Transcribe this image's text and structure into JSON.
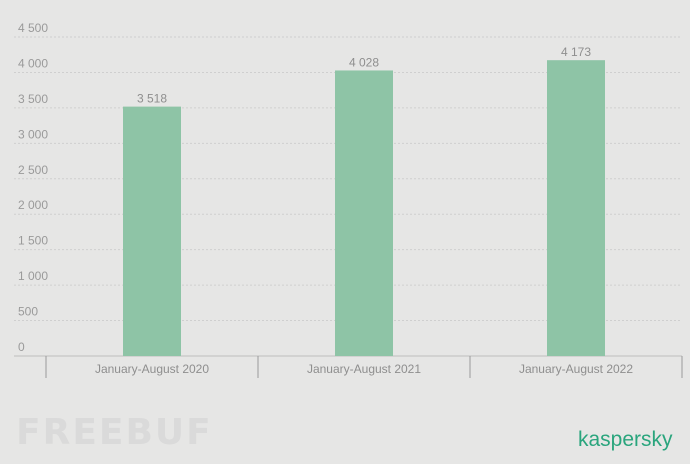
{
  "chart_data": {
    "type": "bar",
    "categories": [
      "January-August 2020",
      "January-August 2021",
      "January-August 2022"
    ],
    "values": [
      3518,
      4028,
      4173
    ],
    "data_labels": [
      "3 518",
      "4 028",
      "4 173"
    ],
    "y_ticks": [
      0,
      500,
      1000,
      1500,
      2000,
      2500,
      3000,
      3500,
      4000,
      4500
    ],
    "y_tick_labels": [
      "0",
      "500",
      "1 000",
      "1 500",
      "2 000",
      "2 500",
      "3 000",
      "3 500",
      "4 000",
      "4 500"
    ],
    "ylim": [
      0,
      4500
    ],
    "grid": true,
    "bar_color": "#8ec4a6",
    "title": "",
    "xlabel": "",
    "ylabel": ""
  },
  "watermark": "FREEBUF",
  "brand": "kaspersky",
  "colors": {
    "background": "#e6e6e5",
    "brand": "#2aa57d"
  }
}
